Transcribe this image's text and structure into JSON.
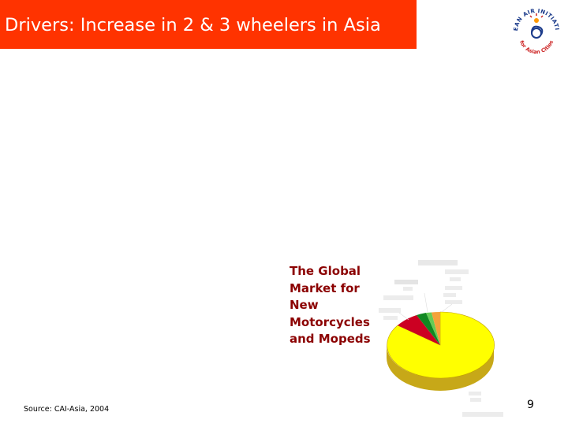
{
  "slide": {
    "title": "Drivers: Increase in 2 & 3 wheelers in Asia",
    "source": "Source: CAI-Asia, 2004",
    "number": "9"
  },
  "colors": {
    "title_bar": "#ff3300",
    "caption_text": "#8b0000",
    "pie_yellow": "#ffff00",
    "pie_red": "#cc0022",
    "pie_green": "#118822",
    "pie_lightgreen": "#66cc55",
    "pie_orange": "#f5a23a"
  },
  "logo": {
    "name": "clean-air-initiative-logo",
    "text_top": "CLEAN AIR INITIATIVE",
    "text_bottom": "for Asian Cities"
  },
  "chart": {
    "caption_lines": [
      "The Global",
      "Market for",
      "New",
      "Motorcycles",
      "and Mopeds"
    ]
  }
}
